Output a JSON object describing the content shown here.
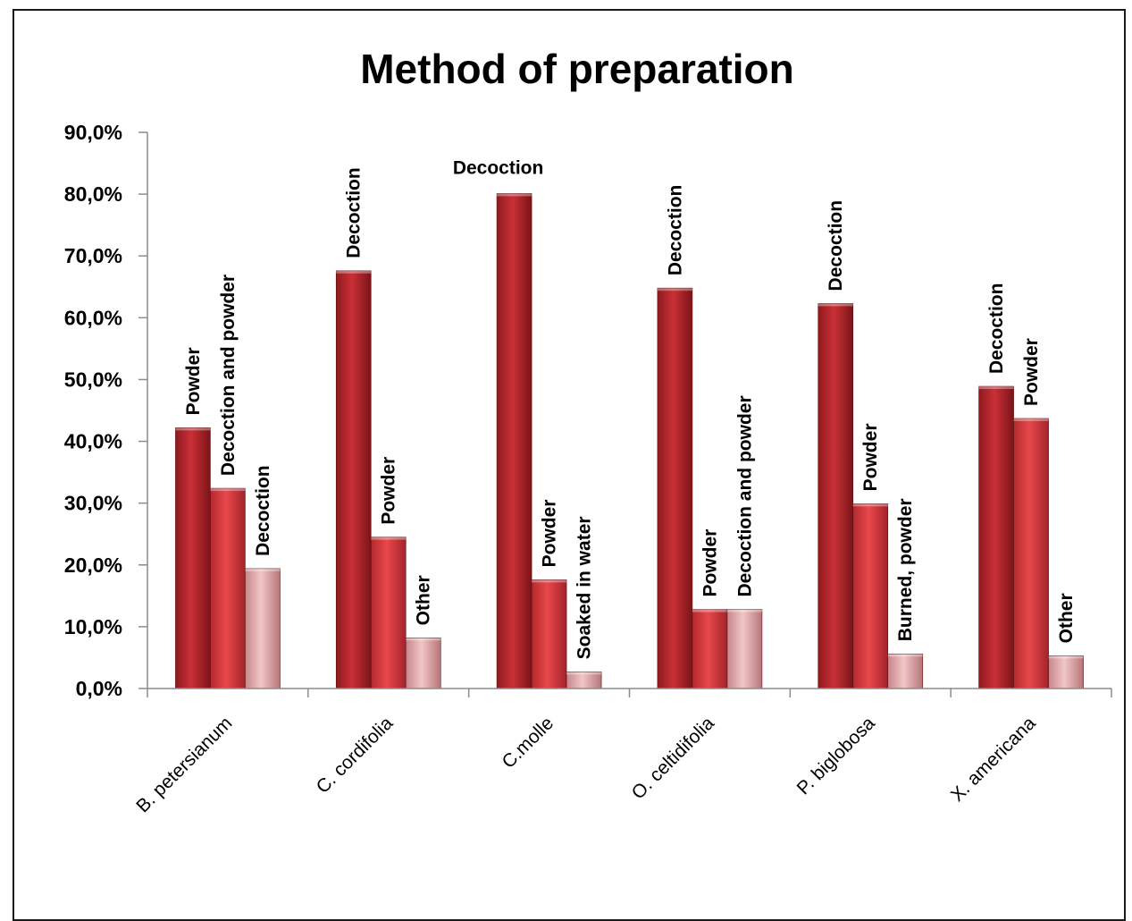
{
  "chart_data": {
    "type": "bar",
    "title": "Method of preparation",
    "xlabel": "",
    "ylabel": "",
    "ylim": [
      0,
      90
    ],
    "yticks": [
      "0,0%",
      "10,0%",
      "20,0%",
      "30,0%",
      "40,0%",
      "50,0%",
      "60,0%",
      "70,0%",
      "80,0%",
      "90,0%"
    ],
    "grid": false,
    "legend": "none",
    "colors": [
      "#b8252b",
      "#d63c3f",
      "#e3a7a9"
    ],
    "groups": [
      {
        "category": "B. petersianum",
        "bars": [
          {
            "label": "Powder",
            "value": 42.2
          },
          {
            "label": "Decoction and powder",
            "value": 32.4
          },
          {
            "label": "Decoction",
            "value": 19.4
          }
        ]
      },
      {
        "category": "C. cordifolia",
        "bars": [
          {
            "label": "Decoction",
            "value": 67.6
          },
          {
            "label": "Powder",
            "value": 24.5
          },
          {
            "label": "Other",
            "value": 8.2
          }
        ]
      },
      {
        "category": "C.molle",
        "bars": [
          {
            "label": "Decoction",
            "value": 80.1
          },
          {
            "label": "Powder",
            "value": 17.6
          },
          {
            "label": "Soaked in water",
            "value": 2.7
          }
        ]
      },
      {
        "category": "O. celtidifolia",
        "bars": [
          {
            "label": "Decoction",
            "value": 64.8
          },
          {
            "label": "Powder",
            "value": 12.8
          },
          {
            "label": "Decoction and powder",
            "value": 12.8
          }
        ]
      },
      {
        "category": "P. biglobosa",
        "bars": [
          {
            "label": "Decoction",
            "value": 62.3
          },
          {
            "label": "Powder",
            "value": 29.9
          },
          {
            "label": "Burned, powder",
            "value": 5.6
          }
        ]
      },
      {
        "category": "X. americana",
        "bars": [
          {
            "label": "Decoction",
            "value": 48.9
          },
          {
            "label": "Powder",
            "value": 43.7
          },
          {
            "label": "Other",
            "value": 5.3
          }
        ]
      }
    ]
  }
}
